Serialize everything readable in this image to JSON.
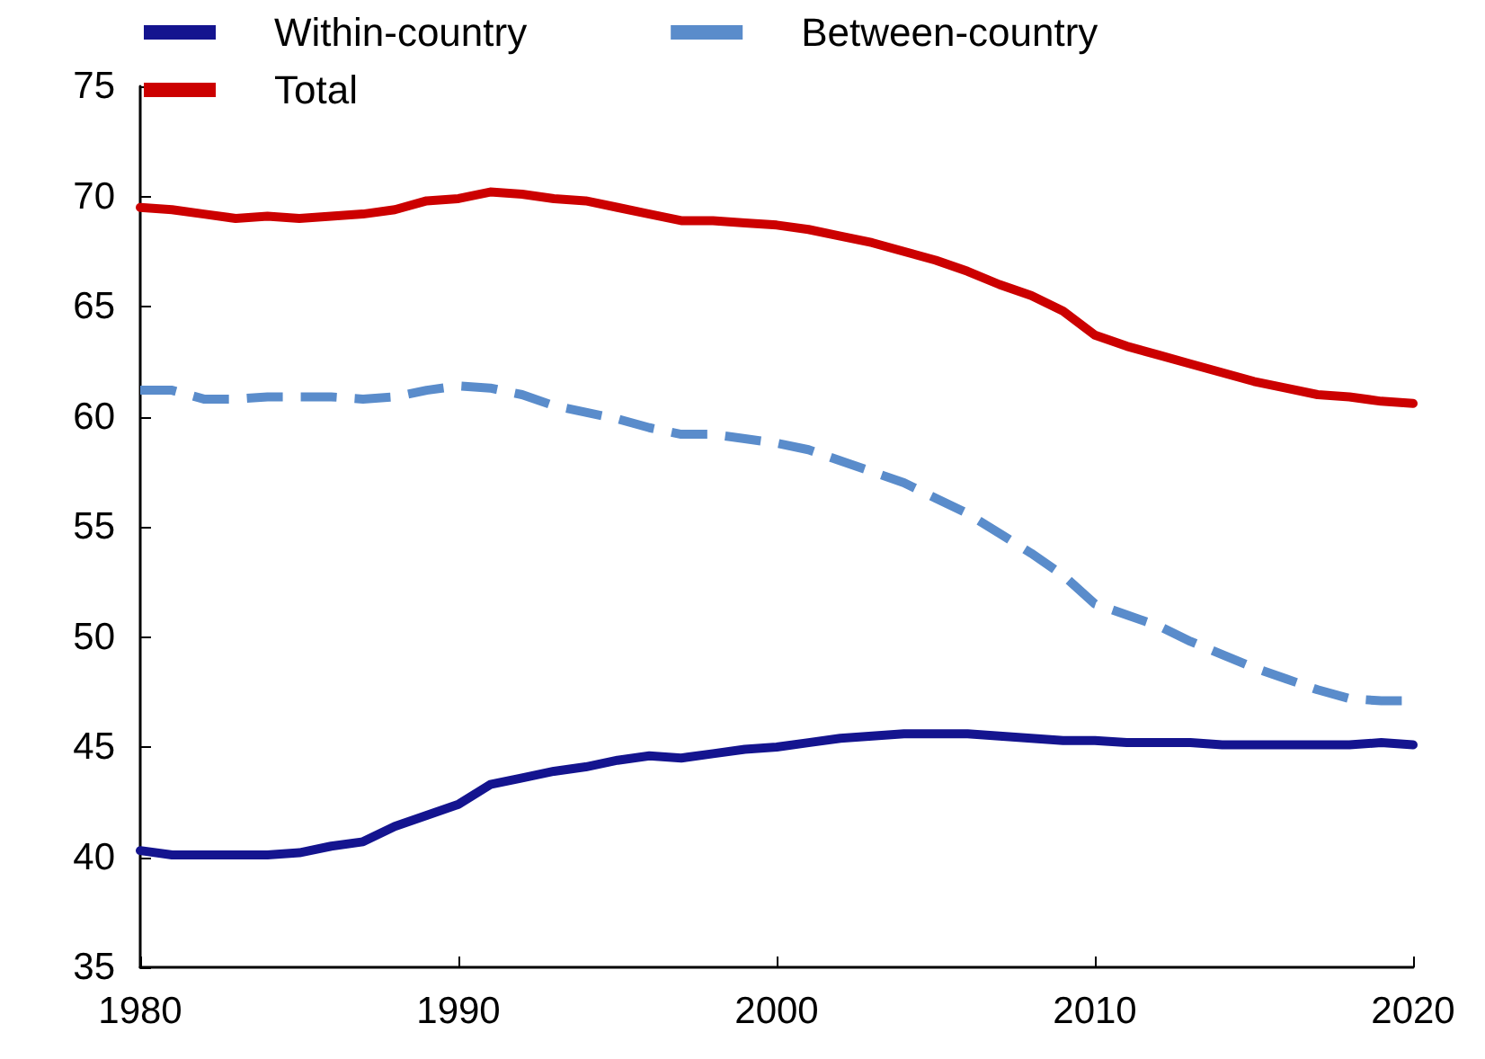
{
  "chart_data": {
    "type": "line",
    "x": [
      1980,
      1981,
      1982,
      1983,
      1984,
      1985,
      1986,
      1987,
      1988,
      1989,
      1990,
      1991,
      1992,
      1993,
      1994,
      1995,
      1996,
      1997,
      1998,
      1999,
      2000,
      2001,
      2002,
      2003,
      2004,
      2005,
      2006,
      2007,
      2008,
      2009,
      2010,
      2011,
      2012,
      2013,
      2014,
      2015,
      2016,
      2017,
      2018,
      2019,
      2020
    ],
    "xlim": [
      1980,
      2020
    ],
    "xticks": [
      1980,
      1990,
      2000,
      2010,
      2020
    ],
    "ylim": [
      35,
      75
    ],
    "yticks": [
      35,
      40,
      45,
      50,
      55,
      60,
      65,
      70,
      75
    ],
    "grid": false,
    "legend": "top",
    "marker": "none",
    "series": [
      {
        "name": "Within-country",
        "color": "#14148f",
        "line_style": "solid",
        "values": [
          40.3,
          40.1,
          40.1,
          40.1,
          40.1,
          40.2,
          40.5,
          40.7,
          41.4,
          41.9,
          42.4,
          43.3,
          43.6,
          43.9,
          44.1,
          44.4,
          44.6,
          44.5,
          44.7,
          44.9,
          45.0,
          45.2,
          45.4,
          45.5,
          45.6,
          45.6,
          45.6,
          45.5,
          45.4,
          45.3,
          45.3,
          45.2,
          45.2,
          45.2,
          45.1,
          45.1,
          45.1,
          45.1,
          45.1,
          45.2,
          45.1
        ]
      },
      {
        "name": "Between-country",
        "color": "#5a8ccb",
        "line_style": "dashed",
        "values": [
          61.2,
          61.2,
          60.8,
          60.8,
          60.9,
          60.9,
          60.9,
          60.8,
          60.9,
          61.2,
          61.4,
          61.3,
          61.0,
          60.5,
          60.2,
          59.9,
          59.5,
          59.2,
          59.2,
          59.0,
          58.8,
          58.5,
          58.0,
          57.5,
          57.0,
          56.3,
          55.6,
          54.7,
          53.8,
          52.8,
          51.5,
          51.0,
          50.5,
          49.8,
          49.2,
          48.6,
          48.1,
          47.6,
          47.2,
          47.1,
          47.1
        ]
      },
      {
        "name": "Total",
        "color": "#cc0000",
        "line_style": "solid",
        "values": [
          69.5,
          69.4,
          69.2,
          69.0,
          69.1,
          69.0,
          69.1,
          69.2,
          69.4,
          69.8,
          69.9,
          70.2,
          70.1,
          69.9,
          69.8,
          69.5,
          69.2,
          68.9,
          68.9,
          68.8,
          68.7,
          68.5,
          68.2,
          67.9,
          67.5,
          67.1,
          66.6,
          66.0,
          65.5,
          64.8,
          63.7,
          63.2,
          62.8,
          62.4,
          62.0,
          61.6,
          61.3,
          61.0,
          60.9,
          60.7,
          60.6
        ]
      }
    ]
  }
}
